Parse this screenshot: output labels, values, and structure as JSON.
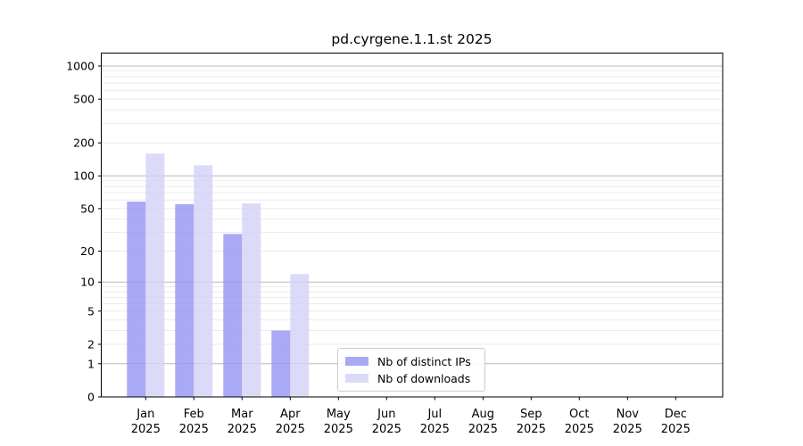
{
  "figure": {
    "title": "pd.cyrgene.1.1.st 2025"
  },
  "chart_data": {
    "type": "bar",
    "title": "pd.cyrgene.1.1.st 2025",
    "year_label": "2025",
    "categories": [
      "Jan",
      "Feb",
      "Mar",
      "Apr",
      "May",
      "Jun",
      "Jul",
      "Aug",
      "Sep",
      "Oct",
      "Nov",
      "Dec"
    ],
    "series": [
      {
        "name": "Nb of distinct IPs",
        "color": "rgba(147,147,242,0.8)",
        "solid_color": "#a9a9f3",
        "values": [
          58,
          55,
          29,
          3,
          0,
          0,
          0,
          0,
          0,
          0,
          0,
          0
        ]
      },
      {
        "name": "Nb of downloads",
        "color": "rgba(210,210,248,0.8)",
        "solid_color": "#dadaf9",
        "values": [
          160,
          125,
          56,
          12,
          0,
          0,
          0,
          0,
          0,
          0,
          0,
          0
        ]
      }
    ],
    "y_ticks": [
      0,
      1,
      2,
      5,
      10,
      20,
      50,
      100,
      200,
      500,
      1000
    ],
    "y_scale": "log10(value+1)",
    "ylim": [
      0,
      1300
    ],
    "grid": true,
    "legend": {
      "position": "bottom-center-inside",
      "entries": [
        "Nb of distinct IPs",
        "Nb of downloads"
      ]
    }
  },
  "colors": {
    "background": "#ffffff",
    "axis": "#000000",
    "grid_major": "#b9b9b9",
    "grid_minor": "#ebebeb",
    "legend_border": "#cccccc",
    "text": "#000000"
  }
}
